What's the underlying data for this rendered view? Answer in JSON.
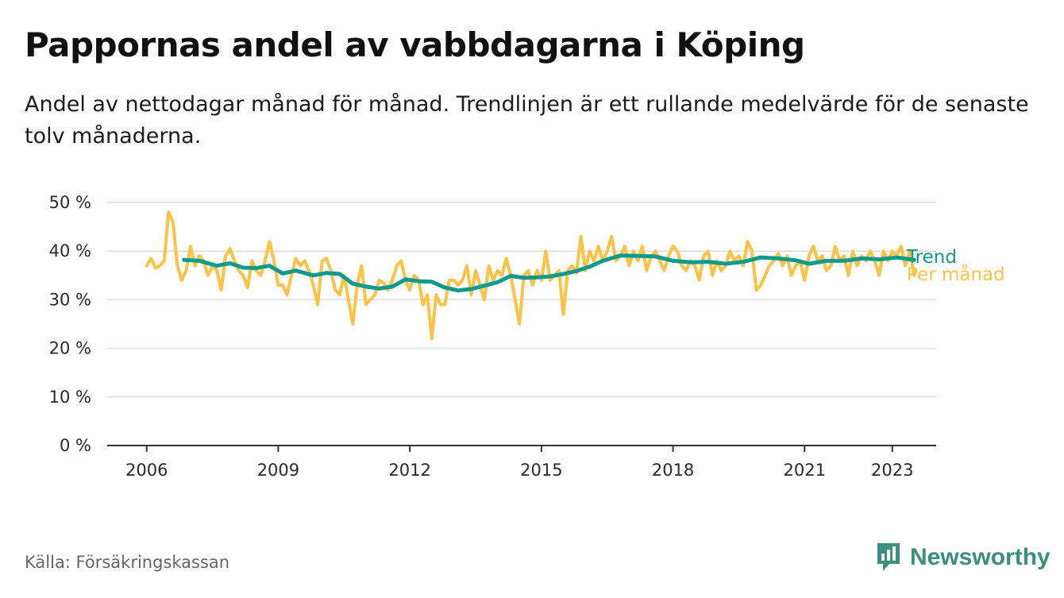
{
  "header": {
    "title": "Pappornas andel av vabbdagarna i Köping",
    "subtitle": "Andel av nettodagar månad för månad. Trendlinjen är ett rullande medelvärde för de senaste tolv månaderna."
  },
  "footer": {
    "source": "Källa: Försäkringskassan",
    "brand": "Newsworthy",
    "brand_icon": "newsworthy-logo-icon"
  },
  "colors": {
    "monthly": "#ffc245",
    "trend": "#0f9a8c",
    "grid": "#dddddd",
    "axis": "#333333",
    "brand": "#3b8f80"
  },
  "chart_data": {
    "type": "line",
    "x_unit": "decimal year",
    "xlim": [
      2005.1,
      2024.0
    ],
    "ylim": [
      0,
      50
    ],
    "y_ticks": [
      0,
      10,
      20,
      30,
      40,
      50
    ],
    "y_tick_labels": [
      "0 %",
      "10 %",
      "20 %",
      "30 %",
      "40 %",
      "50 %"
    ],
    "x_ticks": [
      2006,
      2009,
      2012,
      2015,
      2018,
      2021,
      2023
    ],
    "x_tick_labels": [
      "2006",
      "2009",
      "2012",
      "2015",
      "2018",
      "2021",
      "2023"
    ],
    "grid": true,
    "legend": "inline-right",
    "series": [
      {
        "name": "Per månad",
        "color": "#ffc245",
        "points": [
          [
            2006.0,
            37
          ],
          [
            2006.1,
            38.5
          ],
          [
            2006.2,
            36.5
          ],
          [
            2006.3,
            37
          ],
          [
            2006.4,
            38
          ],
          [
            2006.5,
            48
          ],
          [
            2006.6,
            46
          ],
          [
            2006.7,
            37
          ],
          [
            2006.8,
            34
          ],
          [
            2006.9,
            36
          ],
          [
            2007.0,
            41
          ],
          [
            2007.1,
            37
          ],
          [
            2007.2,
            39
          ],
          [
            2007.3,
            38
          ],
          [
            2007.4,
            35
          ],
          [
            2007.5,
            37
          ],
          [
            2007.6,
            36
          ],
          [
            2007.7,
            32
          ],
          [
            2007.8,
            39
          ],
          [
            2007.9,
            40.5
          ],
          [
            2008.0,
            38
          ],
          [
            2008.1,
            36
          ],
          [
            2008.2,
            35
          ],
          [
            2008.3,
            32.5
          ],
          [
            2008.4,
            38
          ],
          [
            2008.5,
            36
          ],
          [
            2008.6,
            35
          ],
          [
            2008.7,
            38
          ],
          [
            2008.8,
            42
          ],
          [
            2008.9,
            38
          ],
          [
            2009.0,
            33
          ],
          [
            2009.1,
            33
          ],
          [
            2009.2,
            31
          ],
          [
            2009.3,
            35
          ],
          [
            2009.4,
            38.5
          ],
          [
            2009.5,
            37
          ],
          [
            2009.6,
            38
          ],
          [
            2009.7,
            36
          ],
          [
            2009.8,
            33
          ],
          [
            2009.9,
            29
          ],
          [
            2010.0,
            38
          ],
          [
            2010.1,
            38.5
          ],
          [
            2010.2,
            36
          ],
          [
            2010.3,
            32
          ],
          [
            2010.4,
            31
          ],
          [
            2010.5,
            35
          ],
          [
            2010.6,
            30
          ],
          [
            2010.7,
            25
          ],
          [
            2010.8,
            33
          ],
          [
            2010.9,
            37
          ],
          [
            2011.0,
            29
          ],
          [
            2011.1,
            30
          ],
          [
            2011.2,
            31
          ],
          [
            2011.3,
            34
          ],
          [
            2011.4,
            33.5
          ],
          [
            2011.5,
            32
          ],
          [
            2011.6,
            34
          ],
          [
            2011.7,
            37
          ],
          [
            2011.8,
            38
          ],
          [
            2011.9,
            34
          ],
          [
            2012.0,
            32
          ],
          [
            2012.1,
            35
          ],
          [
            2012.2,
            34
          ],
          [
            2012.3,
            29
          ],
          [
            2012.4,
            31
          ],
          [
            2012.5,
            22
          ],
          [
            2012.6,
            31
          ],
          [
            2012.7,
            29
          ],
          [
            2012.8,
            29
          ],
          [
            2012.9,
            34
          ],
          [
            2013.0,
            34
          ],
          [
            2013.1,
            33
          ],
          [
            2013.2,
            34
          ],
          [
            2013.3,
            37
          ],
          [
            2013.4,
            31
          ],
          [
            2013.5,
            36
          ],
          [
            2013.6,
            33
          ],
          [
            2013.7,
            30
          ],
          [
            2013.8,
            37
          ],
          [
            2013.9,
            34
          ],
          [
            2014.0,
            36
          ],
          [
            2014.1,
            35
          ],
          [
            2014.2,
            38.5
          ],
          [
            2014.3,
            35
          ],
          [
            2014.4,
            30
          ],
          [
            2014.5,
            25
          ],
          [
            2014.6,
            35
          ],
          [
            2014.7,
            36
          ],
          [
            2014.8,
            33
          ],
          [
            2014.9,
            36
          ],
          [
            2015.0,
            34
          ],
          [
            2015.1,
            40
          ],
          [
            2015.2,
            34
          ],
          [
            2015.3,
            35
          ],
          [
            2015.4,
            36
          ],
          [
            2015.5,
            27
          ],
          [
            2015.6,
            36
          ],
          [
            2015.7,
            37
          ],
          [
            2015.8,
            35.5
          ],
          [
            2015.9,
            43
          ],
          [
            2016.0,
            36
          ],
          [
            2016.1,
            40
          ],
          [
            2016.2,
            38
          ],
          [
            2016.3,
            41
          ],
          [
            2016.4,
            38
          ],
          [
            2016.5,
            40
          ],
          [
            2016.6,
            43
          ],
          [
            2016.7,
            38
          ],
          [
            2016.8,
            39
          ],
          [
            2016.9,
            41
          ],
          [
            2017.0,
            37
          ],
          [
            2017.1,
            40
          ],
          [
            2017.2,
            38
          ],
          [
            2017.3,
            41
          ],
          [
            2017.4,
            36
          ],
          [
            2017.5,
            39
          ],
          [
            2017.6,
            40
          ],
          [
            2017.7,
            38
          ],
          [
            2017.8,
            36
          ],
          [
            2017.9,
            39
          ],
          [
            2018.0,
            41
          ],
          [
            2018.1,
            40
          ],
          [
            2018.2,
            37
          ],
          [
            2018.3,
            36
          ],
          [
            2018.4,
            38
          ],
          [
            2018.5,
            37
          ],
          [
            2018.6,
            34
          ],
          [
            2018.7,
            39
          ],
          [
            2018.8,
            40
          ],
          [
            2018.9,
            35
          ],
          [
            2019.0,
            38
          ],
          [
            2019.1,
            36
          ],
          [
            2019.2,
            37
          ],
          [
            2019.3,
            40
          ],
          [
            2019.4,
            38
          ],
          [
            2019.5,
            39
          ],
          [
            2019.6,
            37
          ],
          [
            2019.7,
            42
          ],
          [
            2019.8,
            40
          ],
          [
            2019.9,
            32
          ],
          [
            2020.0,
            33
          ],
          [
            2020.1,
            35
          ],
          [
            2020.2,
            37
          ],
          [
            2020.3,
            38
          ],
          [
            2020.4,
            39.5
          ],
          [
            2020.5,
            37
          ],
          [
            2020.6,
            39
          ],
          [
            2020.7,
            35
          ],
          [
            2020.8,
            37
          ],
          [
            2020.9,
            38
          ],
          [
            2021.0,
            34
          ],
          [
            2021.1,
            39
          ],
          [
            2021.2,
            41
          ],
          [
            2021.3,
            38
          ],
          [
            2021.4,
            39
          ],
          [
            2021.5,
            36
          ],
          [
            2021.6,
            37
          ],
          [
            2021.7,
            41
          ],
          [
            2021.8,
            38
          ],
          [
            2021.9,
            39
          ],
          [
            2022.0,
            35
          ],
          [
            2022.1,
            40
          ],
          [
            2022.2,
            37
          ],
          [
            2022.3,
            39
          ],
          [
            2022.4,
            38
          ],
          [
            2022.5,
            40
          ],
          [
            2022.6,
            38
          ],
          [
            2022.7,
            35
          ],
          [
            2022.8,
            40
          ],
          [
            2022.9,
            38
          ],
          [
            2023.0,
            40
          ],
          [
            2023.1,
            39
          ],
          [
            2023.2,
            41
          ],
          [
            2023.3,
            37
          ],
          [
            2023.4,
            40
          ],
          [
            2023.5,
            35
          ]
        ]
      },
      {
        "name": "Trend",
        "color": "#0f9a8c",
        "points": [
          [
            2006.85,
            38.2
          ],
          [
            2007.2,
            38.0
          ],
          [
            2007.6,
            37.0
          ],
          [
            2007.9,
            37.5
          ],
          [
            2008.2,
            36.6
          ],
          [
            2008.5,
            36.5
          ],
          [
            2008.8,
            37.0
          ],
          [
            2009.1,
            35.4
          ],
          [
            2009.4,
            36.0
          ],
          [
            2009.8,
            35.0
          ],
          [
            2010.1,
            35.5
          ],
          [
            2010.4,
            35.3
          ],
          [
            2010.7,
            33.3
          ],
          [
            2011.0,
            32.7
          ],
          [
            2011.3,
            32.3
          ],
          [
            2011.6,
            32.7
          ],
          [
            2011.9,
            34.2
          ],
          [
            2012.2,
            33.8
          ],
          [
            2012.5,
            33.7
          ],
          [
            2012.8,
            32.5
          ],
          [
            2013.1,
            31.9
          ],
          [
            2013.4,
            32.2
          ],
          [
            2013.7,
            32.9
          ],
          [
            2014.0,
            33.6
          ],
          [
            2014.3,
            34.9
          ],
          [
            2014.6,
            34.5
          ],
          [
            2014.9,
            34.6
          ],
          [
            2015.2,
            34.8
          ],
          [
            2015.5,
            35.3
          ],
          [
            2015.8,
            35.9
          ],
          [
            2016.1,
            36.8
          ],
          [
            2016.4,
            38.0
          ],
          [
            2016.8,
            39.1
          ],
          [
            2017.2,
            39.0
          ],
          [
            2017.6,
            38.9
          ],
          [
            2018.0,
            38.0
          ],
          [
            2018.4,
            37.7
          ],
          [
            2018.8,
            37.8
          ],
          [
            2019.2,
            37.4
          ],
          [
            2019.6,
            37.8
          ],
          [
            2020.0,
            38.7
          ],
          [
            2020.4,
            38.5
          ],
          [
            2020.8,
            38.1
          ],
          [
            2021.1,
            37.4
          ],
          [
            2021.5,
            38.0
          ],
          [
            2021.9,
            38.0
          ],
          [
            2022.3,
            38.5
          ],
          [
            2022.7,
            38.3
          ],
          [
            2023.1,
            38.7
          ],
          [
            2023.5,
            38.2
          ]
        ]
      }
    ]
  }
}
